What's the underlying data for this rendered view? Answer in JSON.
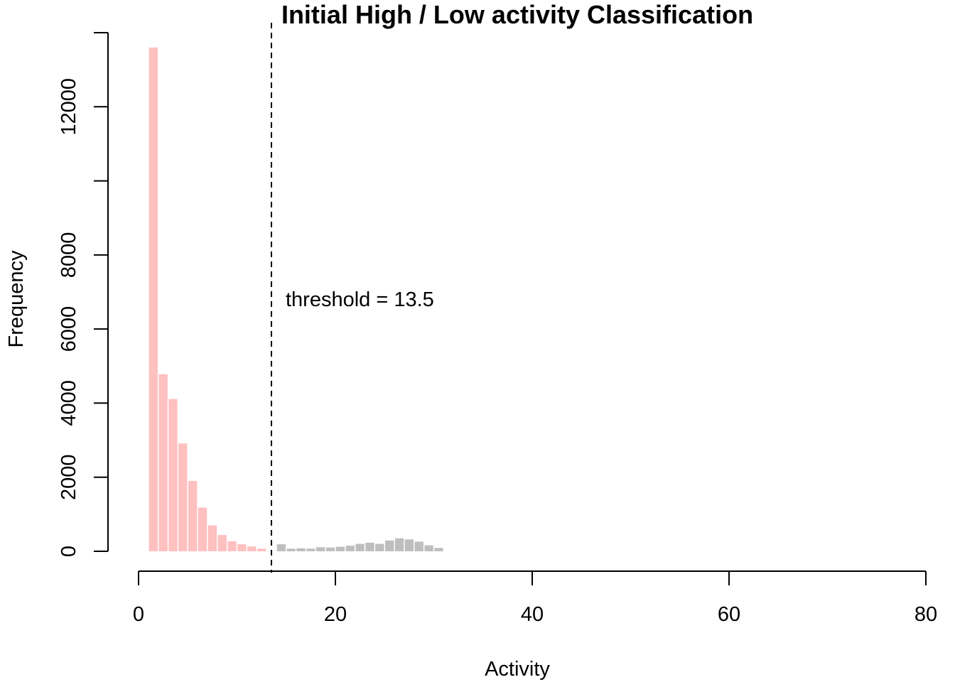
{
  "chart_data": {
    "type": "bar",
    "title": "Initial High / Low activity Classification",
    "xlabel": "Activity",
    "ylabel": "Frequency",
    "xlim": [
      0,
      80
    ],
    "ylim": [
      0,
      14000
    ],
    "x_ticks": [
      "0",
      "20",
      "40",
      "60",
      "80"
    ],
    "y_ticks": [
      {
        "value": 0,
        "label": "0"
      },
      {
        "value": 2000,
        "label": "2000"
      },
      {
        "value": 4000,
        "label": "4000"
      },
      {
        "value": 6000,
        "label": "6000"
      },
      {
        "value": 8000,
        "label": "8000"
      },
      {
        "value": 10000,
        "label": ""
      },
      {
        "value": 12000,
        "label": "12000"
      },
      {
        "value": 14000,
        "label": ""
      }
    ],
    "bin_width": 1,
    "threshold": 13.5,
    "threshold_label": "threshold = 13.5",
    "grid": false,
    "series": [
      {
        "color": "#ffc0c0",
        "bins_start": [
          1,
          2,
          3,
          4,
          5,
          6,
          7,
          8,
          9,
          10,
          11,
          12
        ],
        "values": [
          13600,
          4780,
          4110,
          2910,
          1900,
          1180,
          700,
          440,
          270,
          190,
          130,
          70
        ]
      },
      {
        "color": "#bebebe",
        "bins_start": [
          14,
          15,
          16,
          17,
          18,
          19,
          20,
          21,
          22,
          23,
          24,
          25,
          26,
          27,
          28,
          29,
          30
        ],
        "values": [
          190,
          70,
          80,
          70,
          110,
          100,
          120,
          150,
          200,
          230,
          200,
          290,
          350,
          320,
          260,
          160,
          90
        ]
      }
    ]
  }
}
